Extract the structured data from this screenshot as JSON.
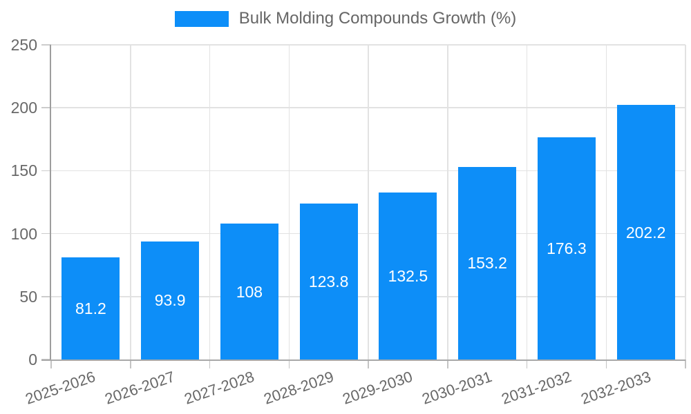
{
  "chart_data": {
    "type": "bar",
    "title": "Bulk Molding Compounds Growth (%)",
    "categories": [
      "2025-2026",
      "2026-2027",
      "2027-2028",
      "2028-2029",
      "2029-2030",
      "2030-2031",
      "2031-2032",
      "2032-2033"
    ],
    "series": [
      {
        "name": "Bulk Molding Compounds Growth (%)",
        "values": [
          81.2,
          93.9,
          108,
          123.8,
          132.5,
          153.2,
          176.3,
          202.2
        ]
      }
    ],
    "value_labels": [
      "81.2",
      "93.9",
      "108",
      "123.8",
      "132.5",
      "153.2",
      "176.3",
      "202.2"
    ],
    "xlabel": "",
    "ylabel": "",
    "ylim": [
      0,
      250
    ],
    "yticks": [
      0,
      50,
      100,
      150,
      200,
      250
    ],
    "grid": true,
    "legend_position": "top",
    "colors": {
      "bar": "#0d8ef8",
      "value_label": "#ffffff",
      "tick_label": "#686868",
      "legend_label": "#666666",
      "gridline": "#e2e2e2",
      "axis_line": "#9e9e9e",
      "background": "#ffffff"
    }
  }
}
